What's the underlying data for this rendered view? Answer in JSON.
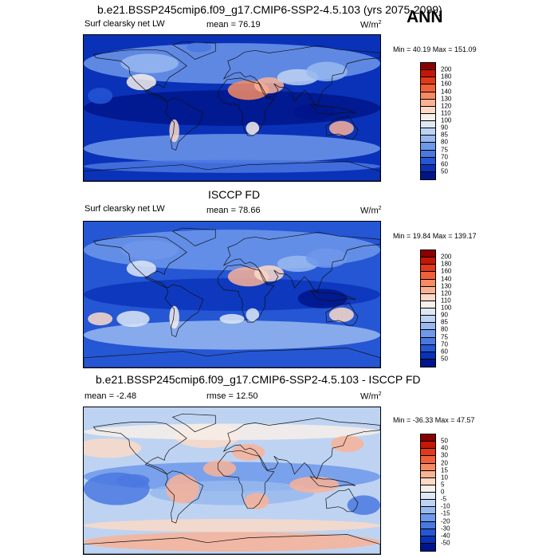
{
  "season": "ANN",
  "panels": [
    {
      "title": "b.e21.BSSP245cmip6.f09_g17.CMIP6-SSP2-4.5.103 (yrs 2075-2099)",
      "left_label": "Surf clearsky net LW",
      "center_label": "mean =  76.19",
      "units": "W/m",
      "units_exp": "2",
      "minmax": "Min =  40.19 Max = 151.09",
      "scale": "abs"
    },
    {
      "title": "ISCCP FD",
      "left_label": "Surf clearsky net LW",
      "center_label": "mean =  78.66",
      "units": "W/m",
      "units_exp": "2",
      "minmax": "Min =  19.84 Max = 139.17",
      "scale": "abs"
    },
    {
      "title": "b.e21.BSSP245cmip6.f09_g17.CMIP6-SSP2-4.5.103 - ISCCP FD",
      "left_label": "mean =  -2.48",
      "center_label": "rmse =  12.50",
      "units": "W/m",
      "units_exp": "2",
      "minmax": "Min = -36.33 Max =  47.57",
      "scale": "diff"
    }
  ],
  "colorbars": {
    "abs": {
      "levels": [
        "200",
        "180",
        "160",
        "140",
        "130",
        "120",
        "110",
        "100",
        "90",
        "85",
        "80",
        "75",
        "70",
        "60",
        "50"
      ],
      "colors": [
        "#8b0000",
        "#c21807",
        "#e03a1a",
        "#f0603a",
        "#f58b63",
        "#f9b296",
        "#fcd9c8",
        "#f7efe9",
        "#dde8f7",
        "#bed3f2",
        "#98b8ef",
        "#6f98ea",
        "#4a78e0",
        "#2556d4",
        "#0a32b8",
        "#00158a"
      ]
    },
    "diff": {
      "levels": [
        "50",
        "40",
        "30",
        "20",
        "15",
        "10",
        "5",
        "0",
        "-5",
        "-10",
        "-15",
        "-20",
        "-30",
        "-40",
        "-50"
      ],
      "colors": [
        "#8b0000",
        "#c21807",
        "#e03a1a",
        "#f0603a",
        "#f58b63",
        "#f9b296",
        "#fcd9c8",
        "#f7efe9",
        "#dde8f7",
        "#bed3f2",
        "#98b8ef",
        "#6f98ea",
        "#4a78e0",
        "#2556d4",
        "#0a32b8",
        "#00158a"
      ]
    }
  }
}
